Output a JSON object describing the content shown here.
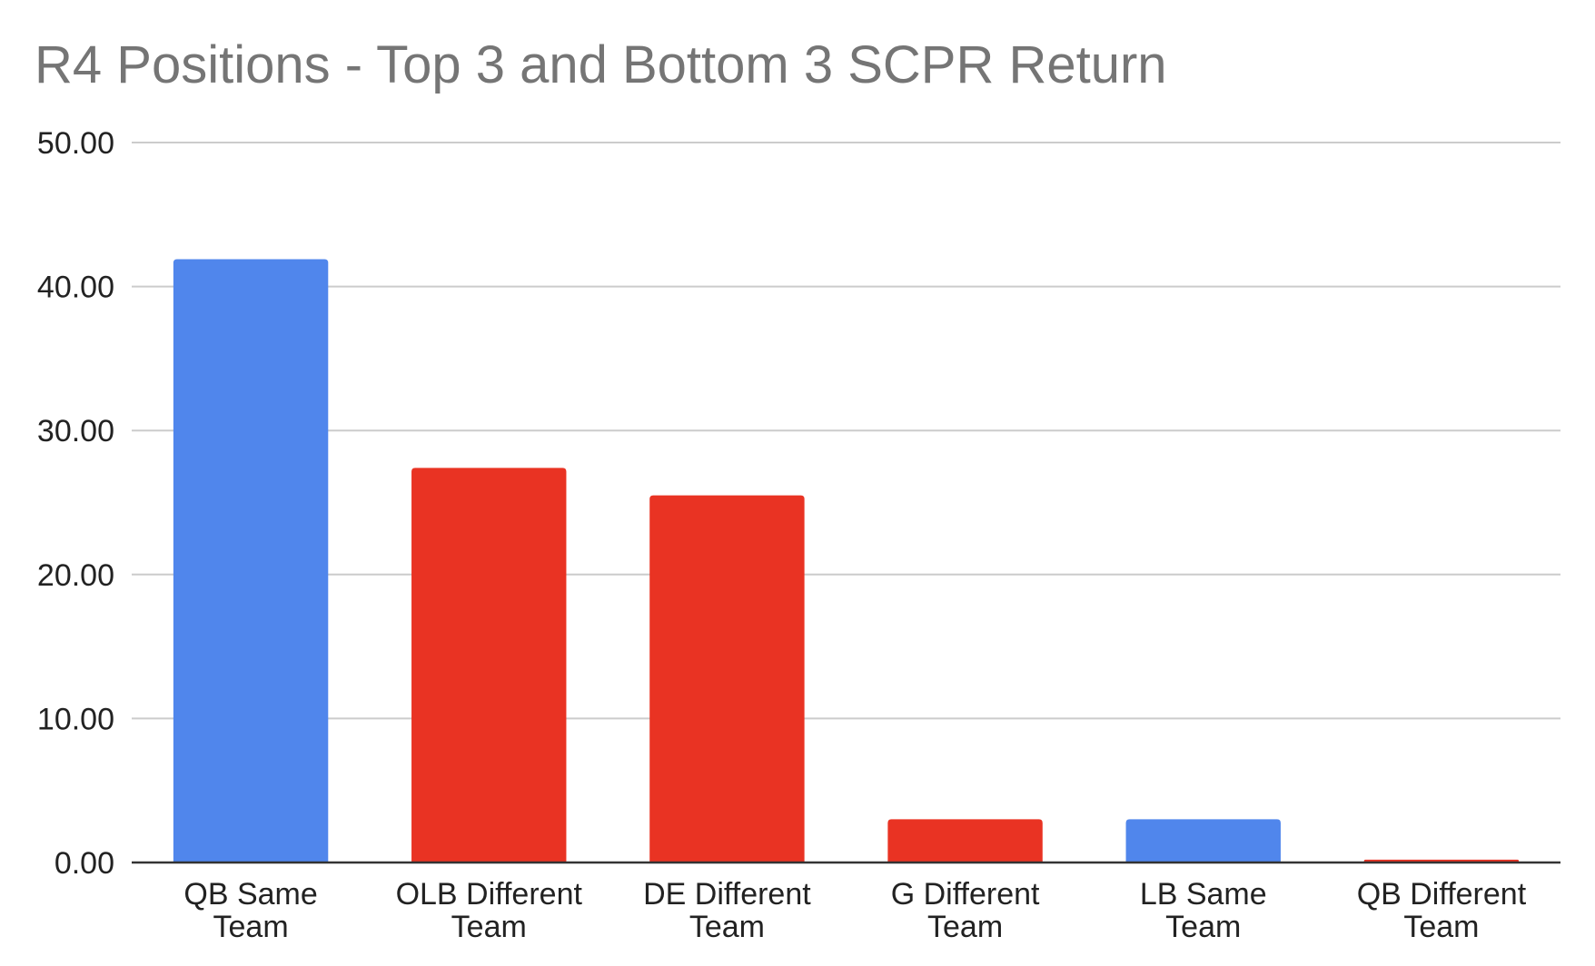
{
  "chart_data": {
    "type": "bar",
    "title": "R4 Positions - Top 3 and Bottom 3 SCPR Return",
    "xlabel": "",
    "ylabel": "",
    "ylim": [
      0,
      50
    ],
    "yticks": [
      "0.00",
      "10.00",
      "20.00",
      "30.00",
      "40.00",
      "50.00"
    ],
    "ytick_values": [
      0,
      10,
      20,
      30,
      40,
      50
    ],
    "grid": true,
    "legend": "none",
    "categories": [
      [
        "QB Same",
        "Team"
      ],
      [
        "OLB Different",
        "Team"
      ],
      [
        "DE Different",
        "Team"
      ],
      [
        "G Different",
        "Team"
      ],
      [
        "LB Same",
        "Team"
      ],
      [
        "QB Different",
        "Team"
      ]
    ],
    "values": [
      41.9,
      27.4,
      25.5,
      3.0,
      3.0,
      0.2
    ],
    "bar_colors": [
      "#5086EC",
      "#E93323",
      "#E93323",
      "#E93323",
      "#5086EC",
      "#E93323"
    ],
    "colors": {
      "gridline": "#CCCCCC",
      "axis": "#333333",
      "title": "#757575"
    }
  }
}
